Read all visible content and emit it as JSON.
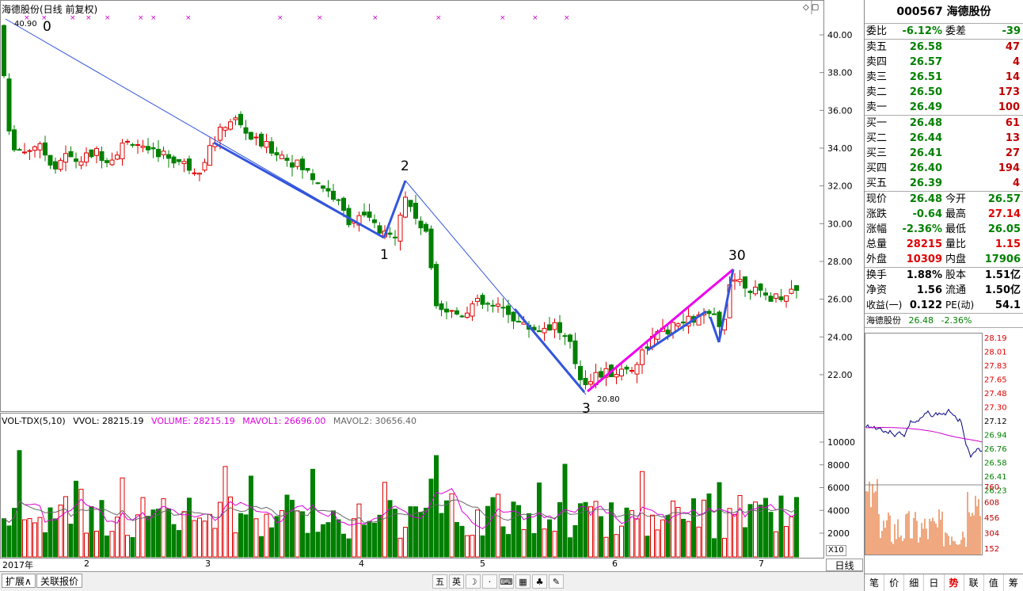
{
  "chart": {
    "title": "海德股份(日线 前复权)",
    "high_label": "40.90",
    "low_label": "20.80",
    "wave_labels": [
      "0",
      "1",
      "2",
      "3",
      "30"
    ],
    "price_ticks": [
      "40.00",
      "38.00",
      "36.00",
      "34.00",
      "32.00",
      "30.00",
      "28.00",
      "26.00",
      "24.00",
      "22.00"
    ],
    "vol_ticks": [
      "10000",
      "8000",
      "6000",
      "4000",
      "2000"
    ],
    "vol_scale": "X10",
    "period": "日线",
    "dates": [
      "2017年",
      "2",
      "3",
      "4",
      "5",
      "6",
      "7"
    ]
  },
  "volume_indicator": {
    "name": "VOL-TDX(5,10)",
    "vvol": "VVOL: 28215.19",
    "volume": "VOLUME: 28215.19",
    "mavol1": "MAVOL1: 26696.00",
    "mavol2": "MAVOL2: 30656.40"
  },
  "colors": {
    "up": "#e00000",
    "down": "#008000",
    "trend": "#3355dd",
    "wave": "#ee00ee"
  },
  "quote": {
    "header": "000567 海德股份",
    "weibi_label": "委比",
    "weibi": "-6.12%",
    "weicha_label": "委差",
    "weicha": "-39",
    "asks": [
      {
        "label": "卖五",
        "price": "26.58",
        "vol": "47"
      },
      {
        "label": "卖四",
        "price": "26.57",
        "vol": "4"
      },
      {
        "label": "卖三",
        "price": "26.51",
        "vol": "14"
      },
      {
        "label": "卖二",
        "price": "26.50",
        "vol": "173"
      },
      {
        "label": "卖一",
        "price": "26.49",
        "vol": "100"
      }
    ],
    "bids": [
      {
        "label": "买一",
        "price": "26.48",
        "vol": "61"
      },
      {
        "label": "买二",
        "price": "26.44",
        "vol": "13"
      },
      {
        "label": "买三",
        "price": "26.41",
        "vol": "27"
      },
      {
        "label": "买四",
        "price": "26.40",
        "vol": "194"
      },
      {
        "label": "买五",
        "price": "26.39",
        "vol": "4"
      }
    ],
    "stats": [
      {
        "l1": "现价",
        "v1": "26.48",
        "l2": "今开",
        "v2": "26.57"
      },
      {
        "l1": "涨跌",
        "v1": "-0.64",
        "l2": "最高",
        "v2": "27.14"
      },
      {
        "l1": "涨幅",
        "v1": "-2.36%",
        "l2": "最低",
        "v2": "26.05"
      },
      {
        "l1": "总量",
        "v1": "28215",
        "l2": "量比",
        "v2": "1.15"
      },
      {
        "l1": "外盘",
        "v1": "10309",
        "l2": "内盘",
        "v2": "17906"
      }
    ],
    "stats2": [
      {
        "l1": "换手",
        "v1": "1.88%",
        "l2": "股本",
        "v2": "1.51亿"
      },
      {
        "l1": "净资",
        "v1": "1.56",
        "l2": "流通",
        "v2": "1.50亿"
      },
      {
        "l1": "收益(一)",
        "v1": "0.122",
        "l2": "PE(动)",
        "v2": "54.1"
      }
    ],
    "mini": {
      "name": "海德股份",
      "price": "26.48",
      "change": "-2.36%",
      "price_ticks": [
        "28.19",
        "28.01",
        "27.83",
        "27.65",
        "27.48",
        "27.30",
        "27.12",
        "26.94",
        "26.76",
        "26.58",
        "26.41",
        "26.23"
      ],
      "vol_ticks": [
        "760",
        "608",
        "456",
        "304",
        "152"
      ]
    },
    "tabs": [
      "笔",
      "价",
      "细",
      "日",
      "势",
      "联",
      "值",
      "筹"
    ]
  },
  "bottom": {
    "expand": "扩展∧",
    "related": "关联报价",
    "tools": [
      "五",
      "英",
      "☽",
      "·",
      "⌨",
      "▦",
      "♣",
      "✎"
    ]
  }
}
